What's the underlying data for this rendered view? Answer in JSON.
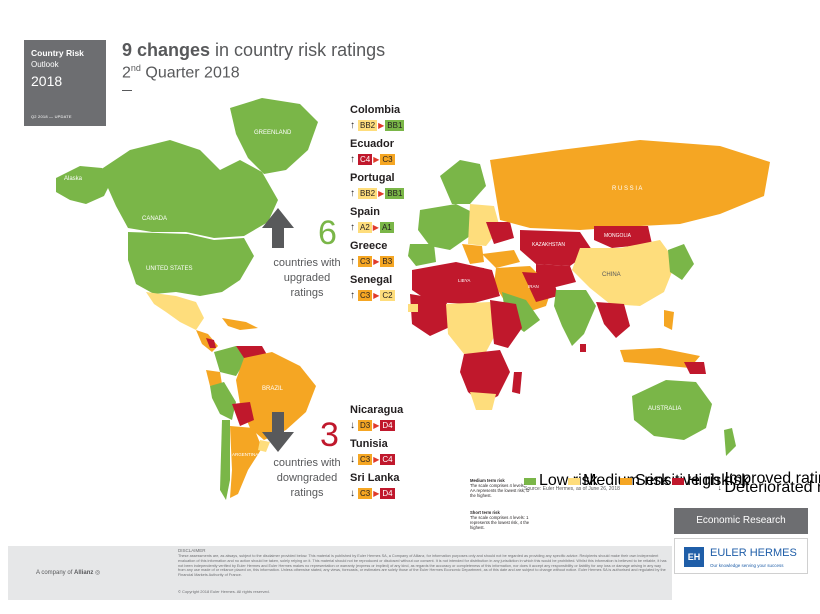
{
  "header": {
    "box_title": "Country Risk",
    "box_subtitle": "Outlook",
    "box_year": "2018",
    "box_update": "Q2 2018 — UPDATE",
    "title_bold": "9 changes",
    "title_rest": " in country risk ratings",
    "subtitle_prefix": "2",
    "subtitle_sup": "nd",
    "subtitle_rest": " Quarter 2018"
  },
  "colors": {
    "low": "#7ab648",
    "medium": "#fedd7c",
    "sensitive": "#f5a623",
    "high": "#c0182c",
    "upgrade_num": "#7ab648",
    "downgrade_num": "#c0182c",
    "ocean": "#ffffff",
    "uncovered": "#d9d9d9"
  },
  "upgrades": {
    "count": "6",
    "label_line1": "countries with",
    "label_line2": "upgraded",
    "label_line3": "ratings",
    "countries": [
      {
        "name": "Colombia",
        "from": "BB2",
        "to": "BB1",
        "from_level": "medium",
        "to_level": "low"
      },
      {
        "name": "Ecuador",
        "from": "C4",
        "to": "C3",
        "from_level": "high",
        "to_level": "sensitive"
      },
      {
        "name": "Portugal",
        "from": "BB2",
        "to": "BB1",
        "from_level": "medium",
        "to_level": "low"
      },
      {
        "name": "Spain",
        "from": "A2",
        "to": "A1",
        "from_level": "medium",
        "to_level": "low"
      },
      {
        "name": "Greece",
        "from": "C3",
        "to": "B3",
        "from_level": "sensitive",
        "to_level": "sensitive"
      },
      {
        "name": "Senegal",
        "from": "C3",
        "to": "C2",
        "from_level": "sensitive",
        "to_level": "medium"
      }
    ]
  },
  "downgrades": {
    "count": "3",
    "label_line1": "countries with",
    "label_line2": "downgraded",
    "label_line3": "ratings",
    "countries": [
      {
        "name": "Nicaragua",
        "from": "D3",
        "to": "D4",
        "from_level": "sensitive",
        "to_level": "high"
      },
      {
        "name": "Tunisia",
        "from": "C3",
        "to": "C4",
        "from_level": "sensitive",
        "to_level": "high"
      },
      {
        "name": "Sri Lanka",
        "from": "C3",
        "to": "D4",
        "from_level": "sensitive",
        "to_level": "high"
      }
    ]
  },
  "map_labels": {
    "alaska": "Alaska",
    "greenland": "GREENLAND",
    "canada": "CANADA",
    "united_states": "UNITED STATES",
    "brazil": "BRAZIL",
    "argentina": "ARGENTINA",
    "russia": "R U S S I A",
    "kazakhstan": "KAZAKHSTAN",
    "mongolia": "MONGOLIA",
    "china": "CHINA",
    "australia": "AUSTRALIA",
    "libya": "LIBYA",
    "iran": "IRAN"
  },
  "legend": {
    "low": "Low risk",
    "medium": "Medium risk",
    "sensitive": "Sensitive risk",
    "high": "High risk",
    "improved": "Improved rating",
    "deteriorated": "Deteriorated rating",
    "source": "Source: Euler Hermes, as of June 26, 2018"
  },
  "scale_notes": {
    "medium_title": "Medium term risk",
    "medium_body": "The scale comprises 4 levels: AA represents the lowest risk, D the highest.",
    "short_title": "Short term risk",
    "short_body": "The scale comprises 4 levels: 1 represents the lowest risk, 4 the highest."
  },
  "branding": {
    "economic_research": "Economic Research",
    "eh_logo": "EH",
    "eh_name": "EULER HERMES",
    "eh_tagline": "Our knowledge serving your success",
    "allianz_prefix": "A company of",
    "allianz_name": "Allianz"
  },
  "footer": {
    "disclaimer_title": "DISCLAIMER",
    "disclaimer_text": "These assessments are, as always, subject to the disclaimer provided below. This material is published by Euler Hermes SA, a Company of Allianz, for information purposes only and should not be regarded as providing any specific advice. Recipients should make their own independent evaluation of this information and no action should be taken, solely relying on it. This material should not be reproduced or disclosed without our consent. It is not intended for distribution in any jurisdiction in which this would be prohibited. Whilst this information is believed to be reliable, it has not been independently verified by Euler Hermes and Euler Hermes makes no representation or warranty (express or implied) of any kind, as regards the accuracy or completeness of this information, nor does it accept any responsibility or liability for any loss or damage arising in any way from any use made of or reliance placed on, this information. Unless otherwise stated, any views, forecasts, or estimates are solely those of the Euler Hermes Economic Department, as of this date and are subject to change without notice. Euler Hermes SA is authorised and regulated by the Financial Markets Authority of France.",
    "copyright": "© Copyright 2018 Euler Hermes. All rights reserved."
  }
}
